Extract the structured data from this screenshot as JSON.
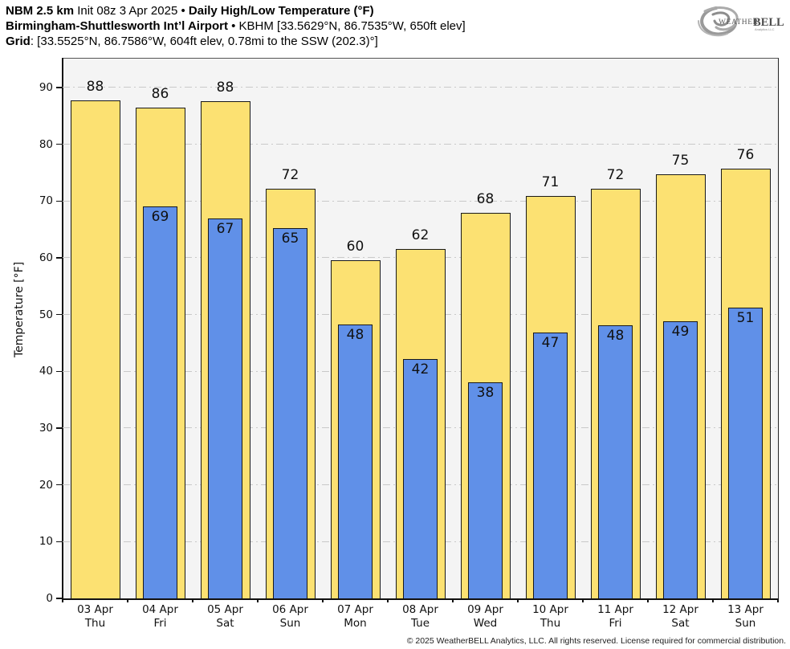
{
  "header": {
    "line1": {
      "model": "NBM 2.5 km",
      "init": " Init 08z 3 Apr 2025 ",
      "bullet": "• ",
      "title": "Daily High/Low Temperature (°F)"
    },
    "line2": {
      "station": "Birmingham-Shuttlesworth Int’l Airport",
      "bullet": " • ",
      "details": "KBHM [33.5629°N, 86.7535°W, 650ft elev]"
    },
    "line3": {
      "label": "Grid",
      "details": ": [33.5525°N, 86.7586°W, 604ft elev, 0.78mi to the SSW (202.3)°]"
    }
  },
  "logo": {
    "brand_weather": "Weather",
    "brand_bell": "BELL",
    "subtext": "Analytics LLC"
  },
  "chart_data": {
    "type": "bar",
    "title": "Daily High/Low Temperature (°F)",
    "xlabel": "",
    "ylabel": "Temperature [°F]",
    "ylim": [
      0,
      95.2
    ],
    "yticks": [
      0,
      10,
      20,
      30,
      40,
      50,
      60,
      70,
      80,
      90
    ],
    "grid": "horizontal dash-dot",
    "legend": "none",
    "categories": [
      {
        "date": "03 Apr",
        "day": "Thu"
      },
      {
        "date": "04 Apr",
        "day": "Fri"
      },
      {
        "date": "05 Apr",
        "day": "Sat"
      },
      {
        "date": "06 Apr",
        "day": "Sun"
      },
      {
        "date": "07 Apr",
        "day": "Mon"
      },
      {
        "date": "08 Apr",
        "day": "Tue"
      },
      {
        "date": "09 Apr",
        "day": "Wed"
      },
      {
        "date": "10 Apr",
        "day": "Thu"
      },
      {
        "date": "11 Apr",
        "day": "Fri"
      },
      {
        "date": "12 Apr",
        "day": "Sat"
      },
      {
        "date": "13 Apr",
        "day": "Sun"
      }
    ],
    "series": [
      {
        "name": "Daily High",
        "color": "#FCE172",
        "values": [
          88,
          86,
          88,
          72,
          60,
          62,
          68,
          71,
          72,
          75,
          76
        ],
        "plotted": [
          87.8,
          86.5,
          87.6,
          72.1,
          59.6,
          61.6,
          67.9,
          70.9,
          72.2,
          74.7,
          75.7
        ]
      },
      {
        "name": "Daily Low",
        "color": "#6090E8",
        "values": [
          null,
          69,
          67,
          65,
          48,
          42,
          38,
          47,
          48,
          49,
          51
        ],
        "plotted": [
          null,
          69.0,
          66.9,
          65.2,
          48.2,
          42.2,
          38.1,
          46.8,
          48.1,
          48.8,
          51.2
        ]
      }
    ]
  },
  "colors": {
    "high_fill": "#FCE172",
    "low_fill": "#6090E8",
    "bar_border": "#191919",
    "plot_bg": "#F4F4F4",
    "gridline": "#C9C9C9",
    "page_bg": "#FFFFFF"
  },
  "footer": {
    "copyright": "© 2025 WeatherBELL Analytics, LLC. All rights reserved. License required for commercial distribution."
  }
}
